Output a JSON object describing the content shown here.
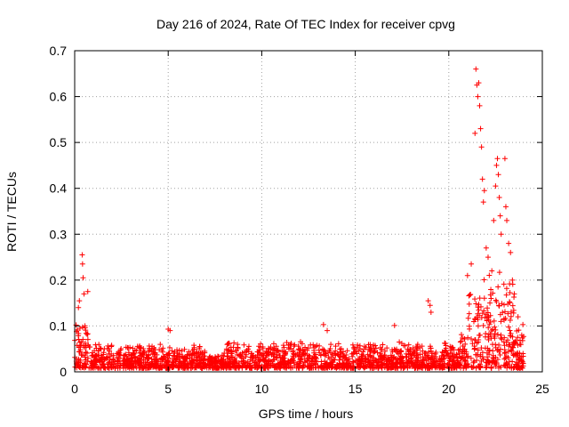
{
  "chart_data": {
    "type": "scatter",
    "title": "Day 216 of 2024, Rate Of TEC Index for receiver cpvg",
    "xlabel": "GPS time / hours",
    "ylabel": "ROTI / TECUs",
    "xlim": [
      0,
      25
    ],
    "ylim": [
      0,
      0.7
    ],
    "x_ticks": [
      0,
      5,
      10,
      15,
      20,
      25
    ],
    "y_ticks": [
      0,
      0.1,
      0.2,
      0.3,
      0.4,
      0.5,
      0.6,
      0.7
    ],
    "grid": true,
    "marker": "+",
    "series_color": "#ff0000",
    "x_range_hours": [
      0,
      24
    ],
    "peaks": [
      {
        "x": 0.2,
        "y": 0.14
      },
      {
        "x": 0.25,
        "y": 0.155
      },
      {
        "x": 0.4,
        "y": 0.255
      },
      {
        "x": 0.42,
        "y": 0.235
      },
      {
        "x": 0.45,
        "y": 0.205
      },
      {
        "x": 0.5,
        "y": 0.17
      },
      {
        "x": 0.7,
        "y": 0.175
      },
      {
        "x": 0.55,
        "y": 0.1
      },
      {
        "x": 5.0,
        "y": 0.093
      },
      {
        "x": 5.1,
        "y": 0.09
      },
      {
        "x": 13.3,
        "y": 0.103
      },
      {
        "x": 13.5,
        "y": 0.09
      },
      {
        "x": 17.1,
        "y": 0.101
      },
      {
        "x": 18.9,
        "y": 0.155
      },
      {
        "x": 19.0,
        "y": 0.145
      },
      {
        "x": 19.05,
        "y": 0.13
      },
      {
        "x": 21.0,
        "y": 0.21
      },
      {
        "x": 21.2,
        "y": 0.235
      },
      {
        "x": 21.4,
        "y": 0.52
      },
      {
        "x": 21.45,
        "y": 0.66
      },
      {
        "x": 21.5,
        "y": 0.625
      },
      {
        "x": 21.55,
        "y": 0.6
      },
      {
        "x": 21.6,
        "y": 0.63
      },
      {
        "x": 21.65,
        "y": 0.58
      },
      {
        "x": 21.7,
        "y": 0.53
      },
      {
        "x": 21.75,
        "y": 0.49
      },
      {
        "x": 21.8,
        "y": 0.42
      },
      {
        "x": 21.85,
        "y": 0.37
      },
      {
        "x": 21.9,
        "y": 0.395
      },
      {
        "x": 22.0,
        "y": 0.27
      },
      {
        "x": 22.1,
        "y": 0.25
      },
      {
        "x": 22.3,
        "y": 0.22
      },
      {
        "x": 22.4,
        "y": 0.33
      },
      {
        "x": 22.5,
        "y": 0.405
      },
      {
        "x": 22.55,
        "y": 0.45
      },
      {
        "x": 22.6,
        "y": 0.465
      },
      {
        "x": 22.65,
        "y": 0.43
      },
      {
        "x": 22.7,
        "y": 0.38
      },
      {
        "x": 22.75,
        "y": 0.34
      },
      {
        "x": 22.8,
        "y": 0.3
      },
      {
        "x": 23.0,
        "y": 0.465
      },
      {
        "x": 23.05,
        "y": 0.36
      },
      {
        "x": 23.1,
        "y": 0.33
      },
      {
        "x": 23.2,
        "y": 0.28
      },
      {
        "x": 23.3,
        "y": 0.26
      },
      {
        "x": 23.4,
        "y": 0.2
      },
      {
        "x": 23.5,
        "y": 0.17
      },
      {
        "x": 23.7,
        "y": 0.12
      },
      {
        "x": 23.9,
        "y": 0.08
      }
    ],
    "background_level": {
      "typical_min": 0.0,
      "typical_max": 0.06,
      "note": "dense noise floor across 0-24 h"
    }
  }
}
